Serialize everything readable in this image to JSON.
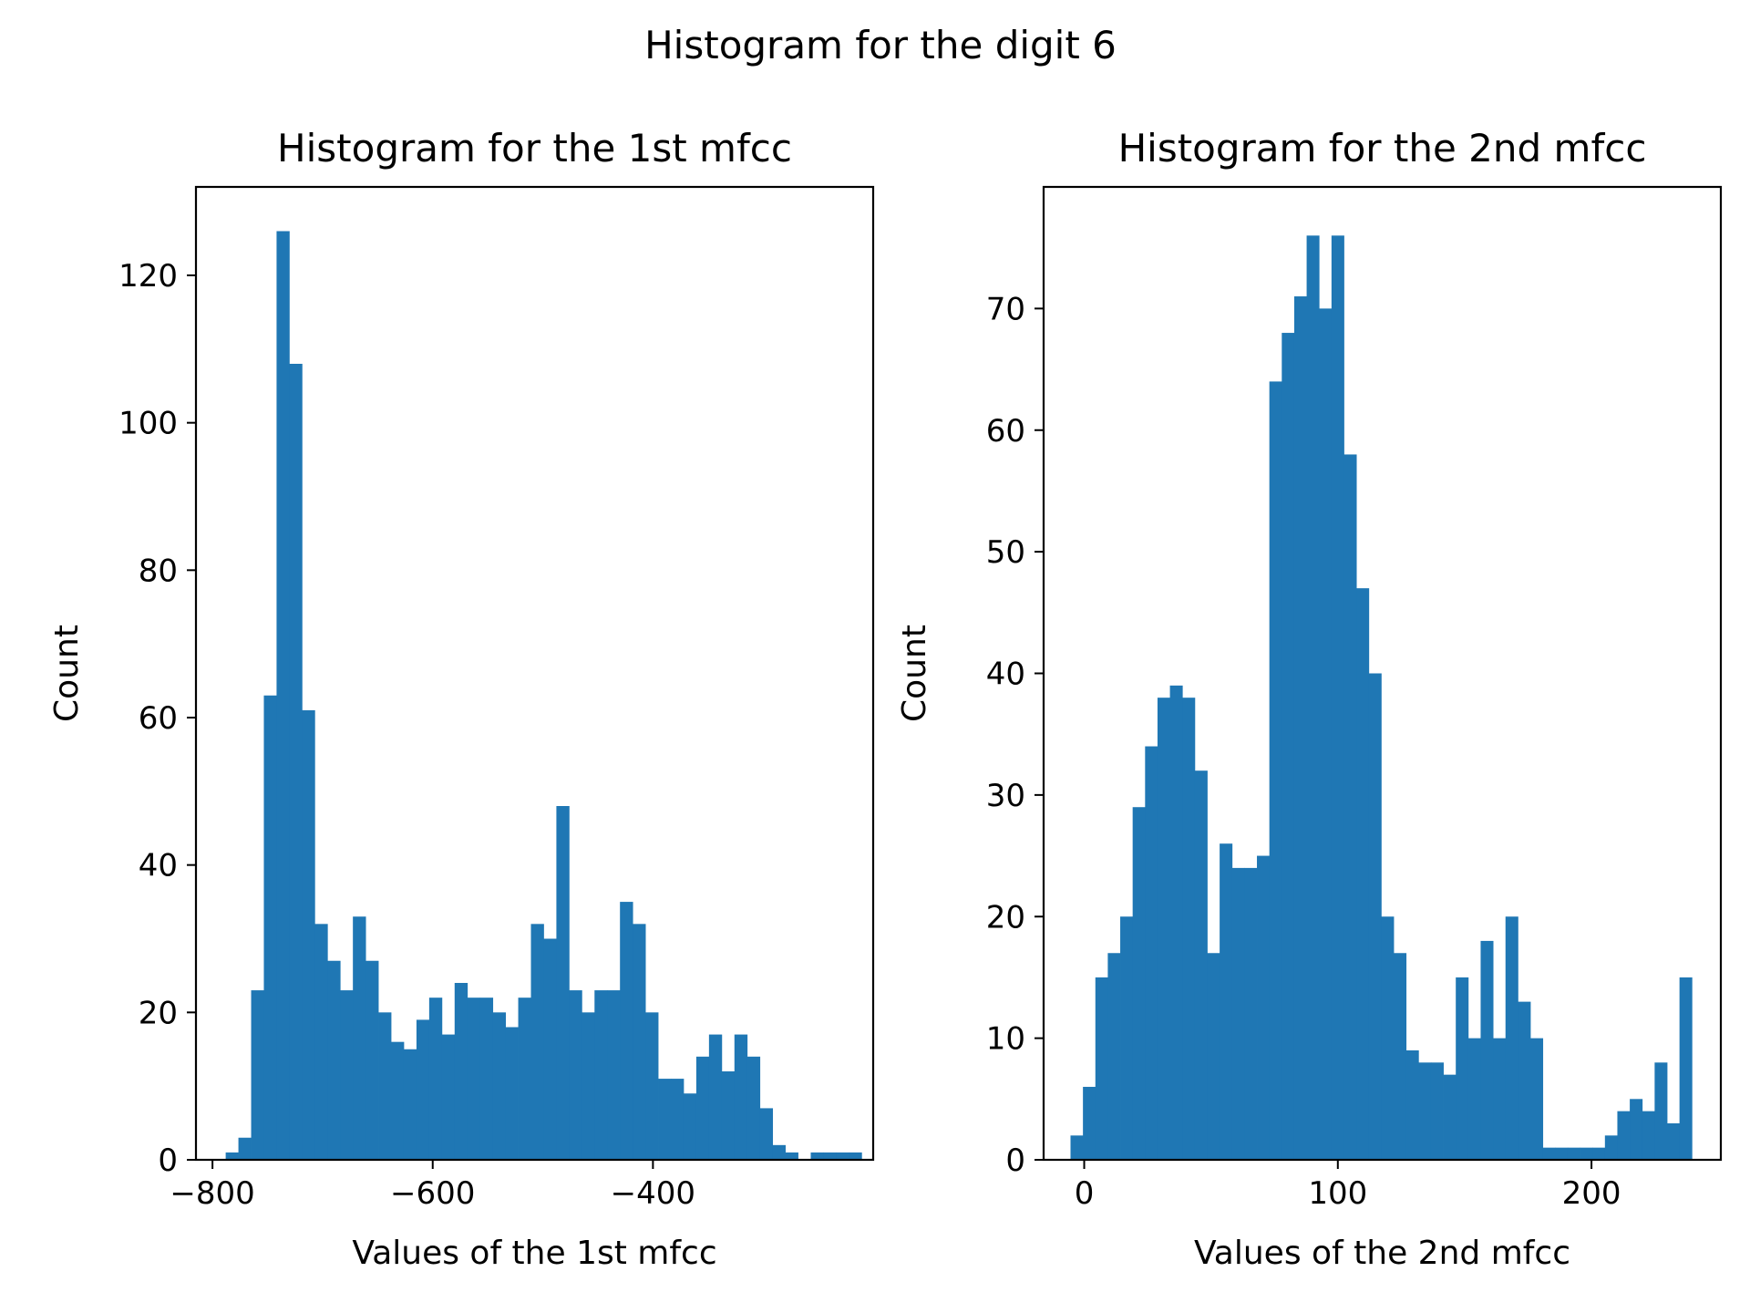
{
  "figure": {
    "suptitle": "Histogram for the digit 6"
  },
  "bar_color": "#1f77b4",
  "chart_data": [
    {
      "type": "bar",
      "title": "Histogram for the 1st mfcc",
      "xlabel": "Values of the 1st mfcc",
      "ylabel": "Count",
      "xlim": [
        -815,
        -200
      ],
      "ylim": [
        0,
        132
      ],
      "xticks": [
        -800,
        -600,
        -400
      ],
      "xtick_labels": [
        "−800",
        "−600",
        "−400"
      ],
      "yticks": [
        0,
        20,
        40,
        60,
        80,
        100,
        120
      ],
      "ytick_labels": [
        "0",
        "20",
        "40",
        "60",
        "80",
        "100",
        "120"
      ],
      "bin_start": -788,
      "bin_width": 11.55,
      "values": [
        1,
        3,
        23,
        63,
        126,
        108,
        61,
        32,
        27,
        23,
        33,
        27,
        20,
        16,
        15,
        19,
        22,
        17,
        24,
        22,
        22,
        20,
        18,
        22,
        32,
        30,
        48,
        23,
        20,
        23,
        23,
        35,
        32,
        20,
        11,
        11,
        9,
        14,
        17,
        12,
        17,
        14,
        7,
        2,
        1,
        0,
        1,
        1,
        1,
        1
      ],
      "grid": false
    },
    {
      "type": "bar",
      "title": "Histogram for the 2nd mfcc",
      "xlabel": "Values of the 2nd mfcc",
      "ylabel": "Count",
      "xlim": [
        -16,
        251
      ],
      "ylim": [
        0,
        80
      ],
      "xticks": [
        0,
        100,
        200
      ],
      "xtick_labels": [
        "0",
        "100",
        "200"
      ],
      "yticks": [
        0,
        10,
        20,
        30,
        40,
        50,
        60,
        70
      ],
      "ytick_labels": [
        "0",
        "10",
        "20",
        "30",
        "40",
        "50",
        "60",
        "70"
      ],
      "bin_start": -5.4,
      "bin_width": 4.9,
      "values": [
        2,
        6,
        15,
        17,
        20,
        29,
        34,
        38,
        39,
        38,
        32,
        17,
        26,
        24,
        24,
        25,
        64,
        68,
        71,
        76,
        70,
        76,
        58,
        47,
        40,
        20,
        17,
        9,
        8,
        8,
        7,
        15,
        10,
        18,
        10,
        20,
        13,
        10,
        1,
        1,
        1,
        1,
        1,
        2,
        4,
        5,
        4,
        8,
        3,
        15
      ],
      "grid": false
    }
  ]
}
